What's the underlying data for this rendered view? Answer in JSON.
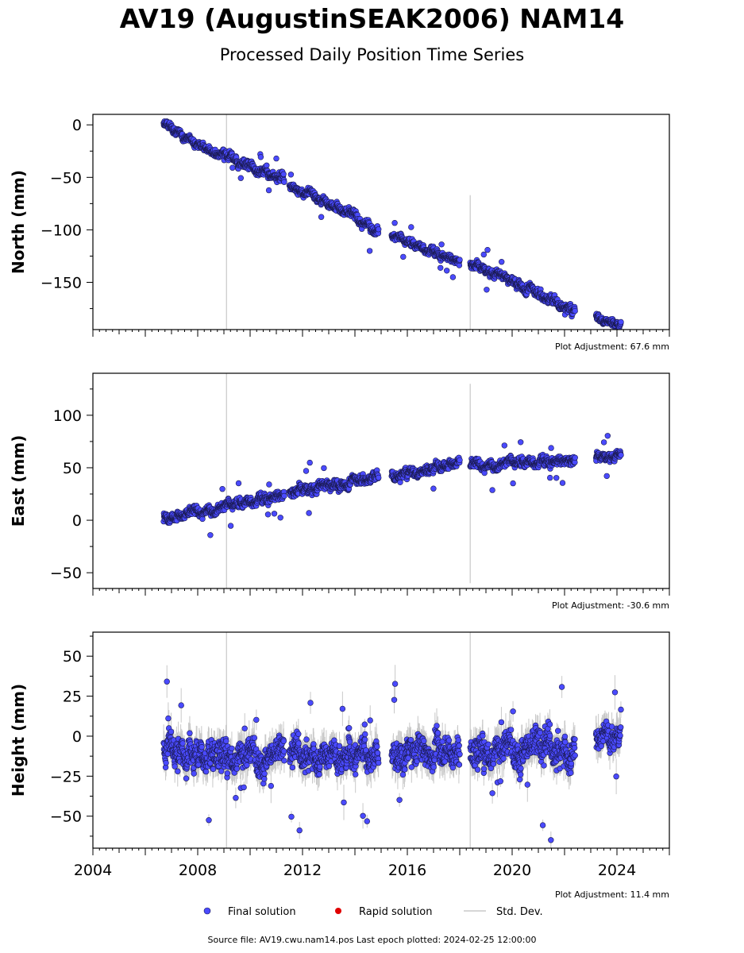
{
  "title": "AV19 (AugustinSEAK2006) NAM14",
  "subtitle": "Processed Daily Position Time Series",
  "source_line": "Source file: AV19.cwu.nam14.pos  Last epoch plotted: 2024-02-25 12:00:00",
  "legend": {
    "final": "Final solution",
    "rapid": "Rapid solution",
    "std": "Std. Dev."
  },
  "colors": {
    "final": "#4a4aff",
    "final_edge": "#1a1a50",
    "rapid": "#e00000",
    "std": "#c8c8c8"
  },
  "chart_data": [
    {
      "type": "scatter",
      "panel": "north",
      "ylabel": "North (mm)",
      "xlim": [
        2004,
        2026
      ],
      "ylim": [
        -195,
        10
      ],
      "yticks": [
        0,
        -50,
        -100,
        -150
      ],
      "xticks": [
        2004,
        2008,
        2012,
        2016,
        2020,
        2024
      ],
      "adjustment": "Plot Adjustment: 67.6 mm",
      "vertical_lines": [
        {
          "x": 2009.1,
          "y0": -195,
          "y1": 10
        },
        {
          "x": 2018.4,
          "y0": -195,
          "y1": -67
        }
      ],
      "segments": [
        {
          "x0": 2006.7,
          "x1": 2009.0,
          "y0": 0,
          "y1": -30,
          "noise": 4
        },
        {
          "x0": 2009.0,
          "x1": 2011.3,
          "y0": -30,
          "y1": -53,
          "noise": 5
        },
        {
          "x0": 2011.5,
          "x1": 2013.3,
          "y0": -58,
          "y1": -78,
          "noise": 4
        },
        {
          "x0": 2013.3,
          "x1": 2014.9,
          "y0": -78,
          "y1": -100,
          "noise": 5
        },
        {
          "x0": 2015.4,
          "x1": 2018.0,
          "y0": -106,
          "y1": -130,
          "noise": 4
        },
        {
          "x0": 2018.4,
          "x1": 2020.2,
          "y0": -132,
          "y1": -150,
          "noise": 4
        },
        {
          "x0": 2020.2,
          "x1": 2022.4,
          "y0": -150,
          "y1": -178,
          "noise": 5
        },
        {
          "x0": 2023.2,
          "x1": 2024.15,
          "y0": -182,
          "y1": -190,
          "noise": 4
        }
      ]
    },
    {
      "type": "scatter",
      "panel": "east",
      "ylabel": "East (mm)",
      "xlim": [
        2004,
        2026
      ],
      "ylim": [
        -65,
        140
      ],
      "yticks": [
        100,
        50,
        0,
        -50
      ],
      "xticks": [
        2004,
        2008,
        2012,
        2016,
        2020,
        2024
      ],
      "adjustment": "Plot Adjustment: -30.6 mm",
      "vertical_lines": [
        {
          "x": 2009.1,
          "y0": -65,
          "y1": 140
        },
        {
          "x": 2018.4,
          "y0": -60,
          "y1": 130
        }
      ],
      "segments": [
        {
          "x0": 2006.7,
          "x1": 2009.0,
          "y0": 2,
          "y1": 13,
          "noise": 5
        },
        {
          "x0": 2009.0,
          "x1": 2011.3,
          "y0": 13,
          "y1": 25,
          "noise": 5
        },
        {
          "x0": 2011.5,
          "x1": 2013.3,
          "y0": 27,
          "y1": 35,
          "noise": 5
        },
        {
          "x0": 2013.3,
          "x1": 2014.9,
          "y0": 35,
          "y1": 42,
          "noise": 5
        },
        {
          "x0": 2015.4,
          "x1": 2018.0,
          "y0": 42,
          "y1": 56,
          "noise": 5
        },
        {
          "x0": 2018.4,
          "x1": 2020.2,
          "y0": 52,
          "y1": 55,
          "noise": 5
        },
        {
          "x0": 2020.2,
          "x1": 2022.4,
          "y0": 55,
          "y1": 58,
          "noise": 5
        },
        {
          "x0": 2023.2,
          "x1": 2024.15,
          "y0": 60,
          "y1": 62,
          "noise": 4
        }
      ]
    },
    {
      "type": "scatter",
      "panel": "height",
      "ylabel": "Height (mm)",
      "xlim": [
        2004,
        2026
      ],
      "ylim": [
        -70,
        65
      ],
      "yticks": [
        50,
        25,
        0,
        -25,
        -50
      ],
      "xticks": [
        2004,
        2008,
        2012,
        2016,
        2020,
        2024
      ],
      "xticklabels": [
        "2004",
        "2008",
        "2012",
        "2016",
        "2020",
        "2024"
      ],
      "adjustment": "Plot Adjustment: 11.4 mm",
      "vertical_lines": [
        {
          "x": 2009.1,
          "y0": -70,
          "y1": 65
        },
        {
          "x": 2018.4,
          "y0": -70,
          "y1": 65
        }
      ],
      "segments": [
        {
          "x0": 2006.7,
          "x1": 2009.0,
          "y0": -8,
          "y1": -12,
          "noise": 10
        },
        {
          "x0": 2009.0,
          "x1": 2011.3,
          "y0": -12,
          "y1": -10,
          "noise": 10
        },
        {
          "x0": 2011.5,
          "x1": 2013.3,
          "y0": -10,
          "y1": -12,
          "noise": 10
        },
        {
          "x0": 2013.3,
          "x1": 2014.9,
          "y0": -12,
          "y1": -10,
          "noise": 10
        },
        {
          "x0": 2015.4,
          "x1": 2018.0,
          "y0": -12,
          "y1": -8,
          "noise": 10
        },
        {
          "x0": 2018.4,
          "x1": 2020.2,
          "y0": -12,
          "y1": -5,
          "noise": 10
        },
        {
          "x0": 2020.2,
          "x1": 2022.4,
          "y0": -5,
          "y1": -8,
          "noise": 12
        },
        {
          "x0": 2023.2,
          "x1": 2024.15,
          "y0": 0,
          "y1": 2,
          "noise": 9
        }
      ]
    }
  ]
}
